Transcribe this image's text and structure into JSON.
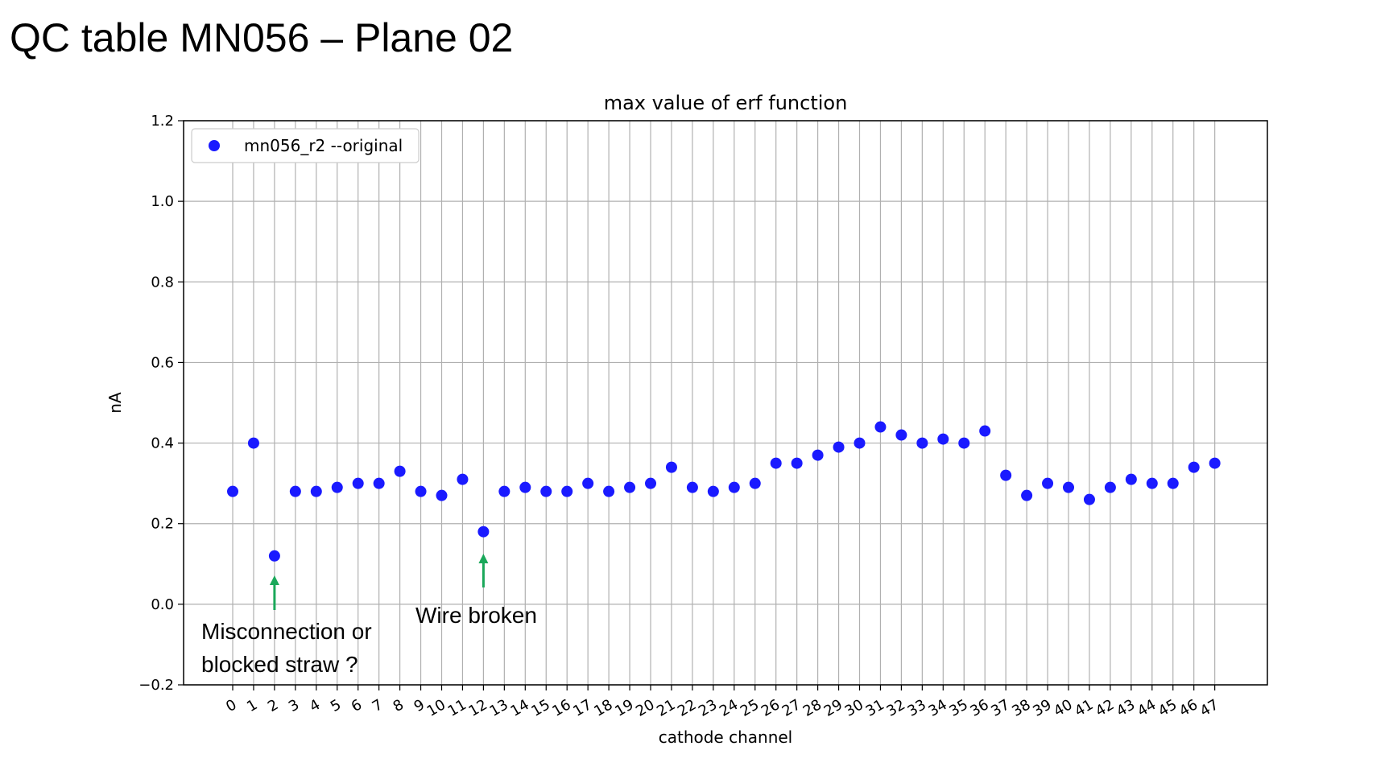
{
  "slide": {
    "title": "QC table MN056 – Plane 02"
  },
  "chart_data": {
    "type": "scatter",
    "title": "max value of erf function",
    "xlabel": "cathode channel",
    "ylabel": "nA",
    "ylim": [
      -0.2,
      1.2
    ],
    "yticks": [
      -0.2,
      0.0,
      0.2,
      0.4,
      0.6,
      0.8,
      1.0,
      1.2
    ],
    "ytick_labels": [
      "−0.2",
      "0.0",
      "0.2",
      "0.4",
      "0.6",
      "0.8",
      "1.0",
      "1.2"
    ],
    "xticks": [
      0,
      1,
      2,
      3,
      4,
      5,
      6,
      7,
      8,
      9,
      10,
      11,
      12,
      13,
      14,
      15,
      16,
      17,
      18,
      19,
      20,
      21,
      22,
      23,
      24,
      25,
      26,
      27,
      28,
      29,
      30,
      31,
      32,
      33,
      34,
      35,
      36,
      37,
      38,
      39,
      40,
      41,
      42,
      43,
      44,
      45,
      46,
      47
    ],
    "grid": true,
    "legend_position": "upper-left",
    "series": [
      {
        "name": "mn056_r2 --original",
        "color": "#1a1aff",
        "x": [
          0,
          1,
          2,
          3,
          4,
          5,
          6,
          7,
          8,
          9,
          10,
          11,
          12,
          13,
          14,
          15,
          16,
          17,
          18,
          19,
          20,
          21,
          22,
          23,
          24,
          25,
          26,
          27,
          28,
          29,
          30,
          31,
          32,
          33,
          34,
          35,
          36,
          37,
          38,
          39,
          40,
          41,
          42,
          43,
          44,
          45,
          46,
          47
        ],
        "y": [
          0.28,
          0.4,
          0.12,
          0.28,
          0.28,
          0.29,
          0.3,
          0.3,
          0.33,
          0.28,
          0.27,
          0.31,
          0.18,
          0.28,
          0.29,
          0.28,
          0.28,
          0.3,
          0.28,
          0.29,
          0.3,
          0.34,
          0.29,
          0.28,
          0.29,
          0.3,
          0.35,
          0.35,
          0.37,
          0.39,
          0.4,
          0.44,
          0.42,
          0.4,
          0.41,
          0.4,
          0.43,
          0.32,
          0.27,
          0.3,
          0.29,
          0.26,
          0.29,
          0.31,
          0.3,
          0.3,
          0.34,
          0.35
        ]
      }
    ],
    "annotations": [
      {
        "channel": 2,
        "lines": [
          "Misconnection or",
          "blocked straw ?"
        ],
        "arrow_color": "#1aa85a"
      },
      {
        "channel": 12,
        "lines": [
          "Wire broken"
        ],
        "arrow_color": "#1aa85a"
      }
    ]
  }
}
